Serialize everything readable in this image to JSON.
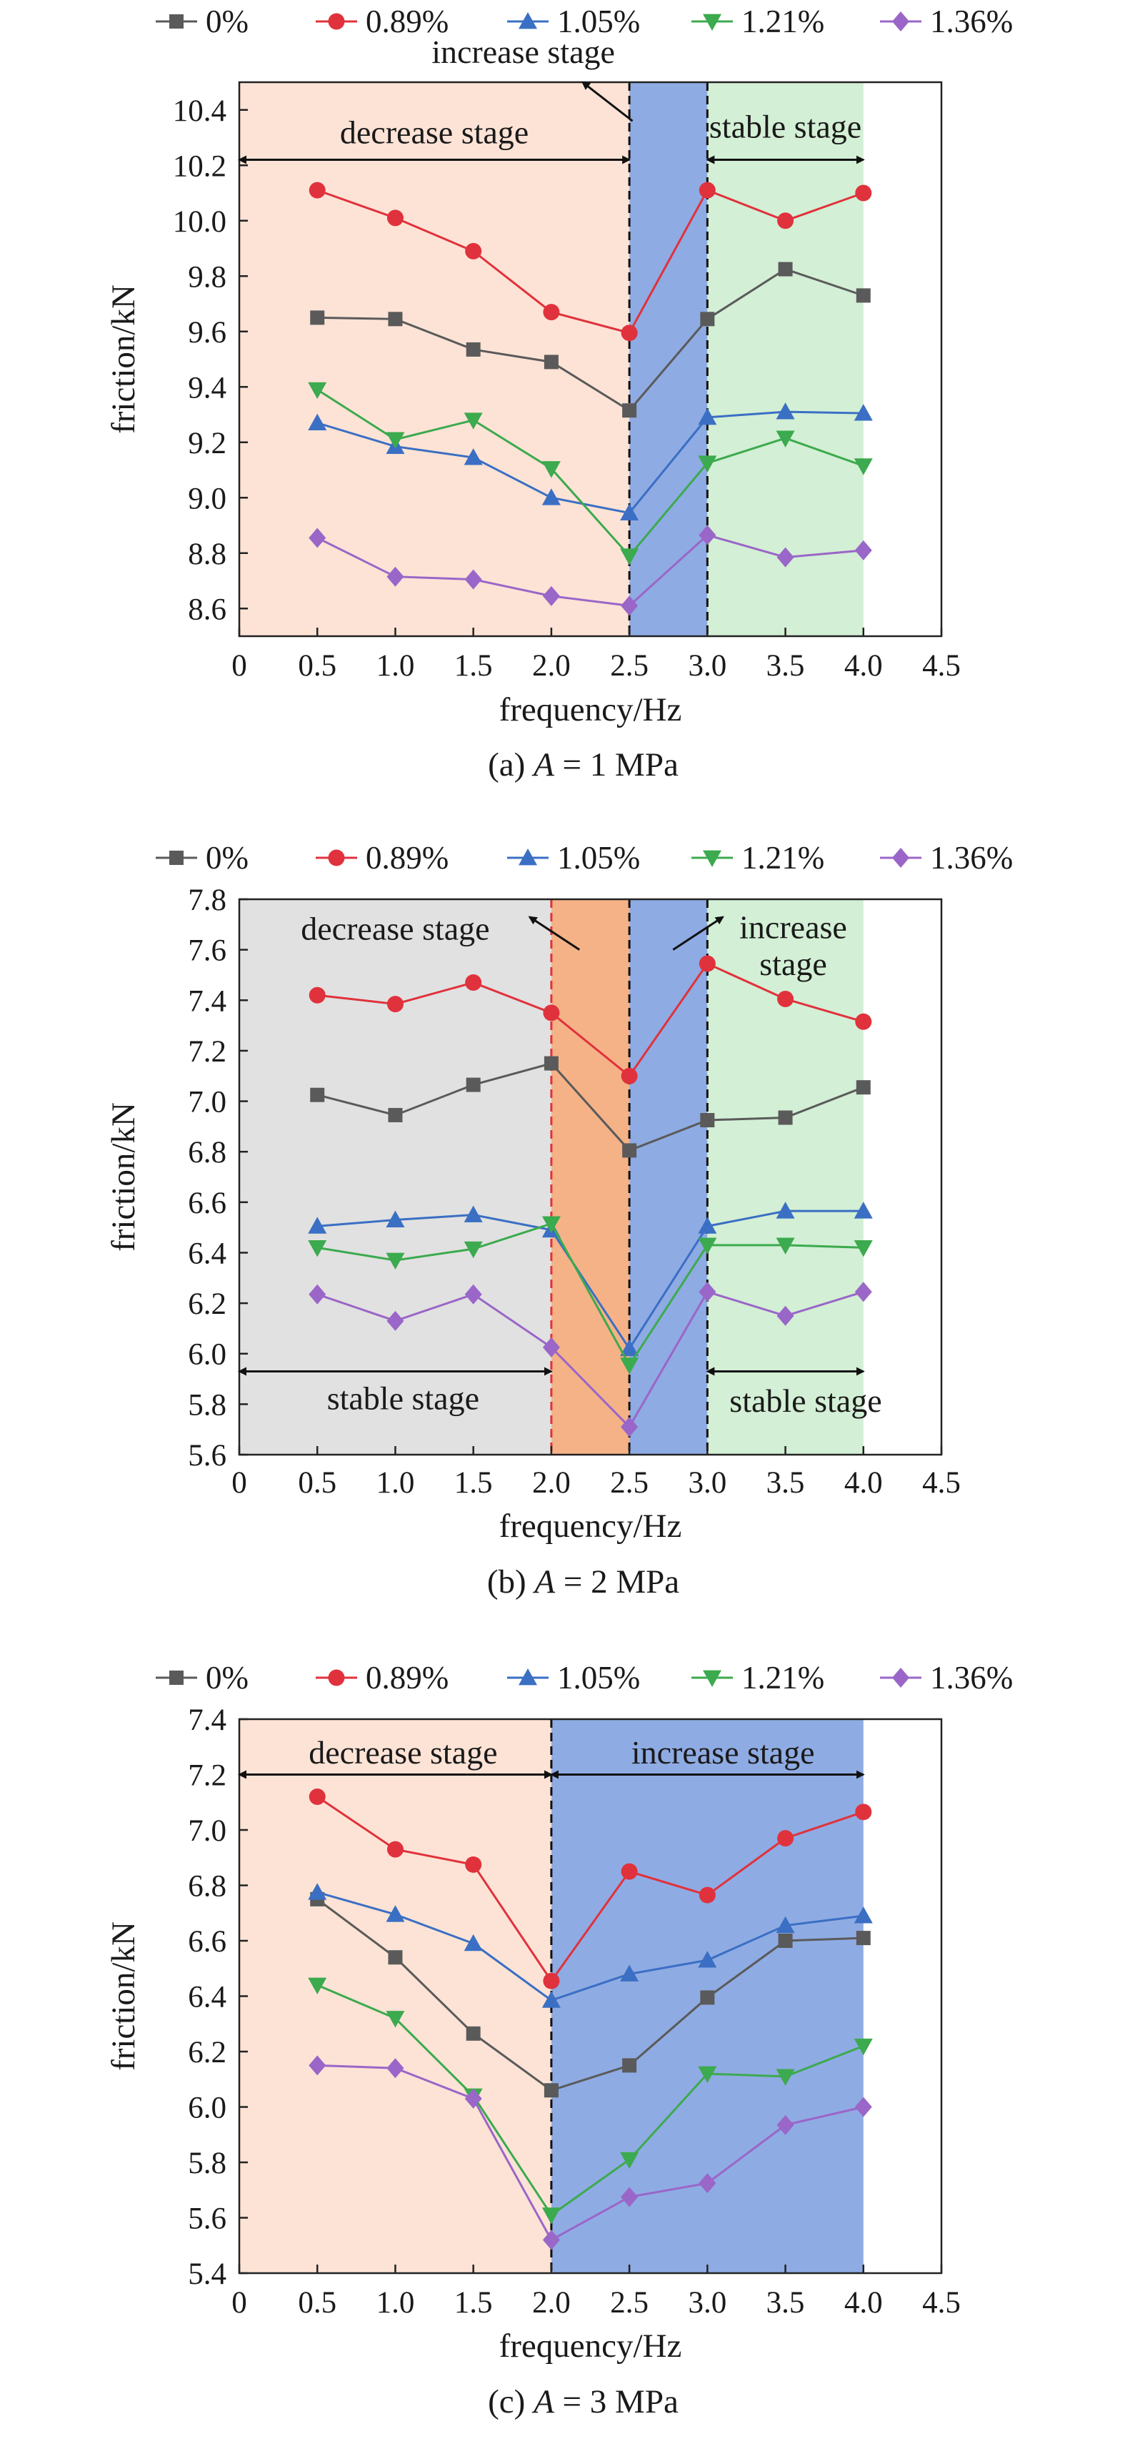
{
  "chart_data": [
    {
      "type": "line",
      "caption_prefix": "(a) ",
      "caption_var": "A",
      "caption_suffix": " = 1 MPa",
      "xlabel": "frequency/Hz",
      "ylabel": "friction/kN",
      "xlim": [
        0,
        4.5
      ],
      "ylim": [
        8.5,
        10.5
      ],
      "x_ticks": [
        "0",
        "0.5",
        "1.0",
        "1.5",
        "2.0",
        "2.5",
        "3.0",
        "3.5",
        "4.0",
        "4.5"
      ],
      "y_ticks": [
        "8.6",
        "8.8",
        "9.0",
        "9.2",
        "9.4",
        "9.6",
        "9.8",
        "10.0",
        "10.2",
        "10.4"
      ],
      "x": [
        0.5,
        1.0,
        1.5,
        2.0,
        2.5,
        3.0,
        3.5,
        4.0
      ],
      "series": [
        {
          "name": "0%",
          "color": "#5a5a5a",
          "marker": "square",
          "values": [
            9.65,
            9.645,
            9.535,
            9.49,
            9.315,
            9.645,
            9.825,
            9.73
          ]
        },
        {
          "name": "0.89%",
          "color": "#e0323c",
          "marker": "circle",
          "values": [
            10.11,
            10.01,
            9.89,
            9.67,
            9.595,
            10.11,
            10.0,
            10.1
          ]
        },
        {
          "name": "1.05%",
          "color": "#3a6fc4",
          "marker": "triangle-up",
          "values": [
            9.27,
            9.185,
            9.145,
            9.0,
            8.945,
            9.29,
            9.31,
            9.305
          ]
        },
        {
          "name": "1.21%",
          "color": "#3caa4e",
          "marker": "triangle-down",
          "values": [
            9.39,
            9.21,
            9.28,
            9.105,
            8.79,
            9.125,
            9.215,
            9.115
          ]
        },
        {
          "name": "1.36%",
          "color": "#9a66c8",
          "marker": "diamond",
          "values": [
            8.855,
            8.715,
            8.705,
            8.645,
            8.61,
            8.865,
            8.785,
            8.81
          ]
        }
      ],
      "regions": [
        {
          "x0": 0,
          "x1": 2.5,
          "color": "#fde3d6"
        },
        {
          "x0": 2.5,
          "x1": 3.0,
          "color": "#8fabe3"
        },
        {
          "x0": 3.0,
          "x1": 4.0,
          "color": "#d3efd5"
        }
      ],
      "dashed_lines": [
        {
          "x": 2.5,
          "color": "#111111"
        },
        {
          "x": 3.0,
          "color": "#111111"
        }
      ],
      "annotations": [
        {
          "text": "decrease stage",
          "x": 1.25,
          "y": 10.28,
          "anchor": "middle"
        },
        {
          "text": "stable stage",
          "x": 3.5,
          "y": 10.3,
          "anchor": "middle"
        },
        {
          "text": "increase stage",
          "x": 1.82,
          "y": 10.57,
          "anchor": "middle"
        }
      ],
      "arrows": [
        {
          "x0": 0,
          "y0": 10.22,
          "x1": 2.5,
          "y1": 10.22,
          "double": true
        },
        {
          "x0": 3.0,
          "y0": 10.22,
          "x1": 4.0,
          "y1": 10.22,
          "double": true
        },
        {
          "x0": 2.52,
          "y0": 10.36,
          "x1": 2.2,
          "y1": 10.5,
          "double": false
        }
      ]
    },
    {
      "type": "line",
      "caption_prefix": "(b) ",
      "caption_var": "A",
      "caption_suffix": " = 2 MPa",
      "xlabel": "frequency/Hz",
      "ylabel": "friction/kN",
      "xlim": [
        0,
        4.5
      ],
      "ylim": [
        5.6,
        7.8
      ],
      "x_ticks": [
        "0",
        "0.5",
        "1.0",
        "1.5",
        "2.0",
        "2.5",
        "3.0",
        "3.5",
        "4.0",
        "4.5"
      ],
      "y_ticks": [
        "5.6",
        "5.8",
        "6.0",
        "6.2",
        "6.4",
        "6.6",
        "6.8",
        "7.0",
        "7.2",
        "7.4",
        "7.6",
        "7.8"
      ],
      "x": [
        0.5,
        1.0,
        1.5,
        2.0,
        2.5,
        3.0,
        3.5,
        4.0
      ],
      "series": [
        {
          "name": "0%",
          "color": "#5a5a5a",
          "marker": "square",
          "values": [
            7.025,
            6.945,
            7.065,
            7.15,
            6.805,
            6.925,
            6.935,
            7.055
          ]
        },
        {
          "name": "0.89%",
          "color": "#e0323c",
          "marker": "circle",
          "values": [
            7.42,
            7.385,
            7.47,
            7.35,
            7.1,
            7.545,
            7.405,
            7.315
          ]
        },
        {
          "name": "1.05%",
          "color": "#3a6fc4",
          "marker": "triangle-up",
          "values": [
            6.505,
            6.53,
            6.55,
            6.49,
            6.02,
            6.505,
            6.565,
            6.565
          ]
        },
        {
          "name": "1.21%",
          "color": "#3caa4e",
          "marker": "triangle-down",
          "values": [
            6.42,
            6.37,
            6.415,
            6.515,
            5.955,
            6.43,
            6.43,
            6.42
          ]
        },
        {
          "name": "1.36%",
          "color": "#9a66c8",
          "marker": "diamond",
          "values": [
            6.235,
            6.13,
            6.235,
            6.025,
            5.71,
            6.245,
            6.15,
            6.245
          ]
        }
      ],
      "regions": [
        {
          "x0": 0,
          "x1": 2.0,
          "color": "#e1e1e1"
        },
        {
          "x0": 2.0,
          "x1": 2.5,
          "color": "#f5b287"
        },
        {
          "x0": 2.5,
          "x1": 3.0,
          "color": "#8fabe3"
        },
        {
          "x0": 3.0,
          "x1": 4.0,
          "color": "#d3efd5"
        }
      ],
      "dashed_lines": [
        {
          "x": 2.0,
          "color": "#e0323c"
        },
        {
          "x": 2.5,
          "color": "#111111"
        },
        {
          "x": 3.0,
          "color": "#111111"
        }
      ],
      "annotations": [
        {
          "text": "decrease stage",
          "x": 1.0,
          "y": 7.64,
          "anchor": "middle"
        },
        {
          "text": "increase",
          "x": 3.55,
          "y": 7.645,
          "anchor": "middle"
        },
        {
          "text": "stage",
          "x": 3.55,
          "y": 7.5,
          "anchor": "middle"
        },
        {
          "text": "stable stage",
          "x": 1.05,
          "y": 5.78,
          "anchor": "middle"
        },
        {
          "text": "stable stage",
          "x": 3.63,
          "y": 5.77,
          "anchor": "middle"
        }
      ],
      "arrows": [
        {
          "x0": 0,
          "y0": 5.93,
          "x1": 2.0,
          "y1": 5.93,
          "double": true
        },
        {
          "x0": 3.0,
          "y0": 5.93,
          "x1": 4.0,
          "y1": 5.93,
          "double": true
        },
        {
          "x0": 2.18,
          "y0": 7.6,
          "x1": 1.86,
          "y1": 7.73,
          "double": false
        },
        {
          "x0": 2.78,
          "y0": 7.6,
          "x1": 3.1,
          "y1": 7.73,
          "double": false
        }
      ]
    },
    {
      "type": "line",
      "caption_prefix": "(c) ",
      "caption_var": "A",
      "caption_suffix": " = 3 MPa",
      "xlabel": "frequency/Hz",
      "ylabel": "friction/kN",
      "xlim": [
        0,
        4.5
      ],
      "ylim": [
        5.4,
        7.4
      ],
      "x_ticks": [
        "0",
        "0.5",
        "1.0",
        "1.5",
        "2.0",
        "2.5",
        "3.0",
        "3.5",
        "4.0",
        "4.5"
      ],
      "y_ticks": [
        "5.4",
        "5.6",
        "5.8",
        "6.0",
        "6.2",
        "6.4",
        "6.6",
        "6.8",
        "7.0",
        "7.2",
        "7.4"
      ],
      "x": [
        0.5,
        1.0,
        1.5,
        2.0,
        2.5,
        3.0,
        3.5,
        4.0
      ],
      "series": [
        {
          "name": "0%",
          "color": "#5a5a5a",
          "marker": "square",
          "values": [
            6.75,
            6.54,
            6.265,
            6.06,
            6.15,
            6.395,
            6.6,
            6.61
          ]
        },
        {
          "name": "0.89%",
          "color": "#e0323c",
          "marker": "circle",
          "values": [
            7.12,
            6.93,
            6.875,
            6.455,
            6.85,
            6.765,
            6.97,
            7.065
          ]
        },
        {
          "name": "1.05%",
          "color": "#3a6fc4",
          "marker": "triangle-up",
          "values": [
            6.775,
            6.695,
            6.59,
            6.385,
            6.48,
            6.53,
            6.655,
            6.69
          ]
        },
        {
          "name": "1.21%",
          "color": "#3caa4e",
          "marker": "triangle-down",
          "values": [
            6.44,
            6.32,
            6.04,
            5.61,
            5.81,
            6.12,
            6.11,
            6.22
          ]
        },
        {
          "name": "1.36%",
          "color": "#9a66c8",
          "marker": "diamond",
          "values": [
            6.15,
            6.14,
            6.03,
            5.52,
            5.675,
            5.725,
            5.935,
            6.0
          ]
        }
      ],
      "regions": [
        {
          "x0": 0,
          "x1": 2.0,
          "color": "#fde3d6"
        },
        {
          "x0": 2.0,
          "x1": 4.0,
          "color": "#8fabe3"
        }
      ],
      "dashed_lines": [
        {
          "x": 2.0,
          "color": "#111111"
        }
      ],
      "annotations": [
        {
          "text": "decrease stage",
          "x": 1.05,
          "y": 7.24,
          "anchor": "middle"
        },
        {
          "text": "increase stage",
          "x": 3.1,
          "y": 7.24,
          "anchor": "middle"
        }
      ],
      "arrows": [
        {
          "x0": 0,
          "y0": 7.2,
          "x1": 2.0,
          "y1": 7.2,
          "double": true
        },
        {
          "x0": 2.0,
          "y0": 7.2,
          "x1": 4.0,
          "y1": 7.2,
          "double": true
        }
      ]
    }
  ]
}
